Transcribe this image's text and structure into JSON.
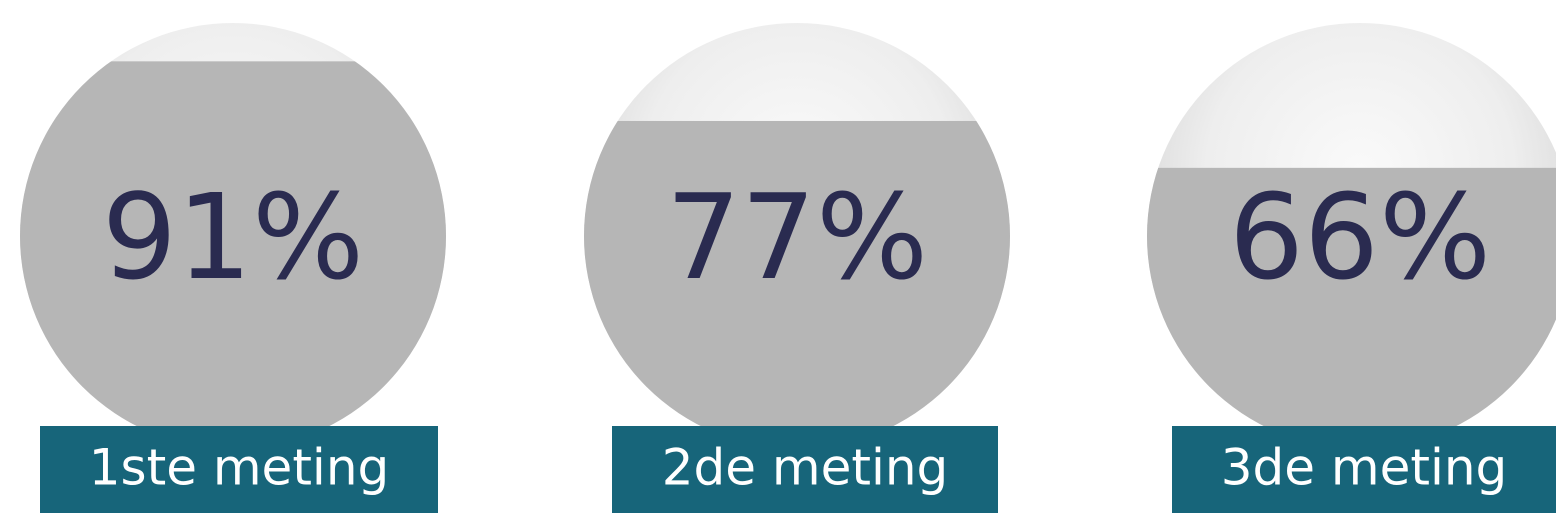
{
  "chart_data": {
    "type": "fill-gauge",
    "categories": [
      "1ste meting",
      "2de meting",
      "3de meting"
    ],
    "values": [
      91,
      77,
      66
    ],
    "value_labels": [
      "91%",
      "77%",
      "66%"
    ],
    "color": "#b6b6b6",
    "label_color": "#17657a",
    "text_color": "#2a2b50"
  }
}
